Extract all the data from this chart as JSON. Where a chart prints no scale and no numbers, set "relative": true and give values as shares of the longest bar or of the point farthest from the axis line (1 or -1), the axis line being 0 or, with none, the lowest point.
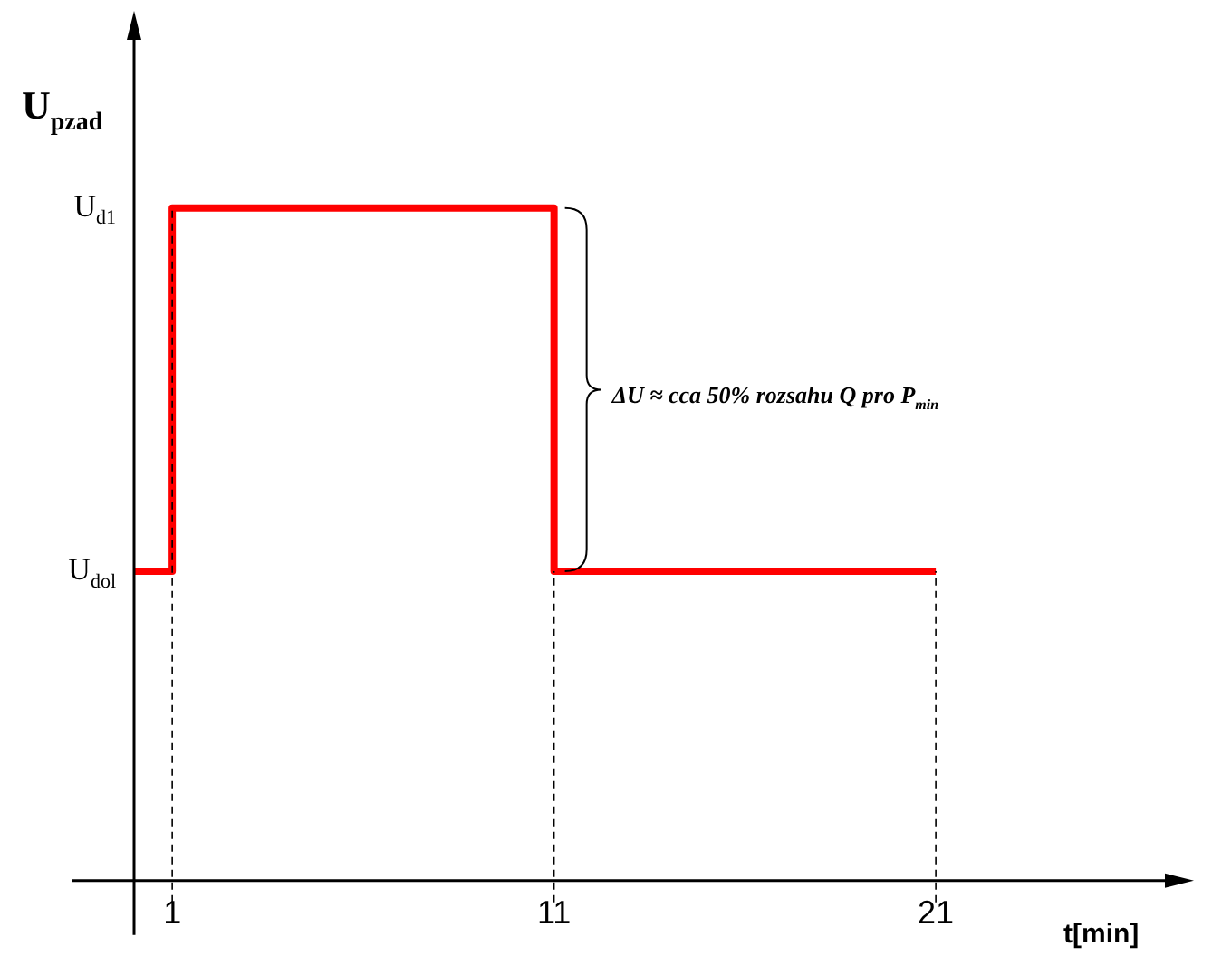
{
  "chart_data": {
    "type": "step",
    "relative": true,
    "ylabel": "U$_{pzad}$",
    "xlabel": "t[min]",
    "x": [
      0,
      1,
      11,
      21
    ],
    "series": [
      {
        "color": "#ff0000",
        "values": [
          0.46,
          1,
          0.46,
          0.46
        ]
      }
    ],
    "xlim": [
      0,
      27
    ],
    "xticks": [
      1,
      11,
      21
    ],
    "ref_lines": [
      {
        "axis": "x",
        "value": 1,
        "line_style": "dashed",
        "color": "#000000"
      },
      {
        "axis": "x",
        "value": 11,
        "line_style": "dashed",
        "color": "#000000"
      },
      {
        "axis": "x",
        "value": 21,
        "line_style": "dashed",
        "color": "#000000"
      }
    ],
    "annotations": [
      "U$_{d1}$",
      "U$_{dol}$",
      "ΔU ≈ cca 50% rozsahu Q pro P$_{min}$"
    ],
    "grid": false,
    "legend": false
  }
}
